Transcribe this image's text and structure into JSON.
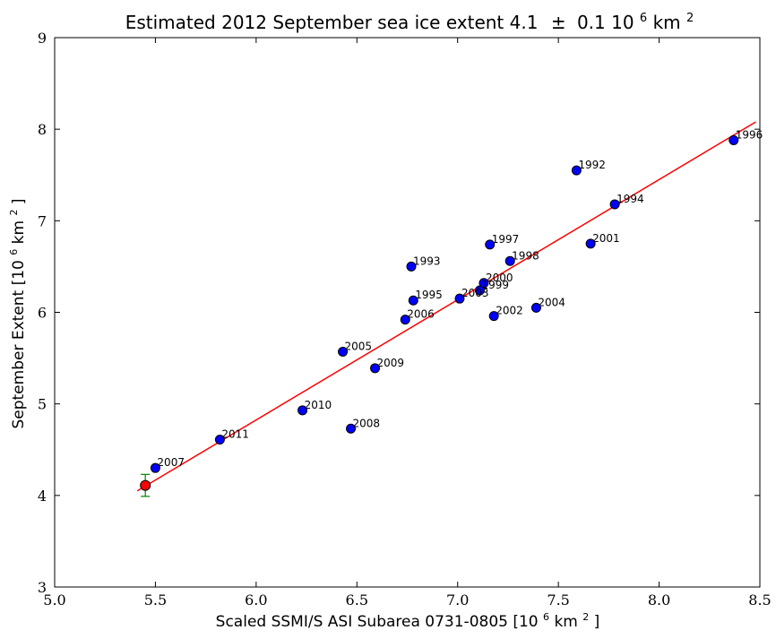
{
  "chart_data": {
    "type": "scatter",
    "title": {
      "prefix": "Estimated 2012 September sea ice extent 4.1",
      "pm": "±",
      "value": "0.1 10",
      "exp": "6",
      "unit": " km",
      "unit_exp": "2"
    },
    "xlabel": {
      "text": "Scaled SSMI/S ASI Subarea 0731-0805 [10",
      "exp": "6",
      "unit": " km",
      "unit_exp": "2",
      "close": "]"
    },
    "ylabel": {
      "text": "September Extent [10",
      "exp": "6",
      "unit": " km",
      "unit_exp": "2",
      "close": "]"
    },
    "xlim": [
      5.0,
      8.5
    ],
    "ylim": [
      3,
      9
    ],
    "x_ticks": [
      "5.0",
      "5.5",
      "6.0",
      "6.5",
      "7.0",
      "7.5",
      "8.0",
      "8.5"
    ],
    "y_ticks": [
      "3",
      "4",
      "5",
      "6",
      "7",
      "8",
      "9"
    ],
    "grid": false,
    "colors": {
      "points": "#0000ff",
      "estimate": "#ff0000",
      "fit_line": "#ff0000",
      "error_bar": "#008000"
    },
    "series": [
      {
        "points": [
          {
            "label": "1992",
            "x": 7.59,
            "y": 7.55
          },
          {
            "label": "1993",
            "x": 6.77,
            "y": 6.5
          },
          {
            "label": "1994",
            "x": 7.78,
            "y": 7.18
          },
          {
            "label": "1995",
            "x": 6.78,
            "y": 6.13
          },
          {
            "label": "1996",
            "x": 8.37,
            "y": 7.88
          },
          {
            "label": "1997",
            "x": 7.16,
            "y": 6.74
          },
          {
            "label": "1998",
            "x": 7.26,
            "y": 6.56
          },
          {
            "label": "1999",
            "x": 7.11,
            "y": 6.24
          },
          {
            "label": "2000",
            "x": 7.13,
            "y": 6.32
          },
          {
            "label": "2001",
            "x": 7.66,
            "y": 6.75
          },
          {
            "label": "2002",
            "x": 7.18,
            "y": 5.96
          },
          {
            "label": "2003",
            "x": 7.01,
            "y": 6.15
          },
          {
            "label": "2004",
            "x": 7.39,
            "y": 6.05
          },
          {
            "label": "2005",
            "x": 6.43,
            "y": 5.57
          },
          {
            "label": "2006",
            "x": 6.74,
            "y": 5.92
          },
          {
            "label": "2007",
            "x": 5.5,
            "y": 4.3
          },
          {
            "label": "2008",
            "x": 6.47,
            "y": 4.73
          },
          {
            "label": "2009",
            "x": 6.59,
            "y": 5.39
          },
          {
            "label": "2010",
            "x": 6.23,
            "y": 4.93
          },
          {
            "label": "2011",
            "x": 5.82,
            "y": 4.61
          }
        ]
      }
    ],
    "estimate": {
      "x": 5.45,
      "y": 4.11,
      "err": 0.12
    },
    "fit_line": {
      "x": [
        5.41,
        8.48
      ],
      "y": [
        4.05,
        8.08
      ]
    }
  }
}
